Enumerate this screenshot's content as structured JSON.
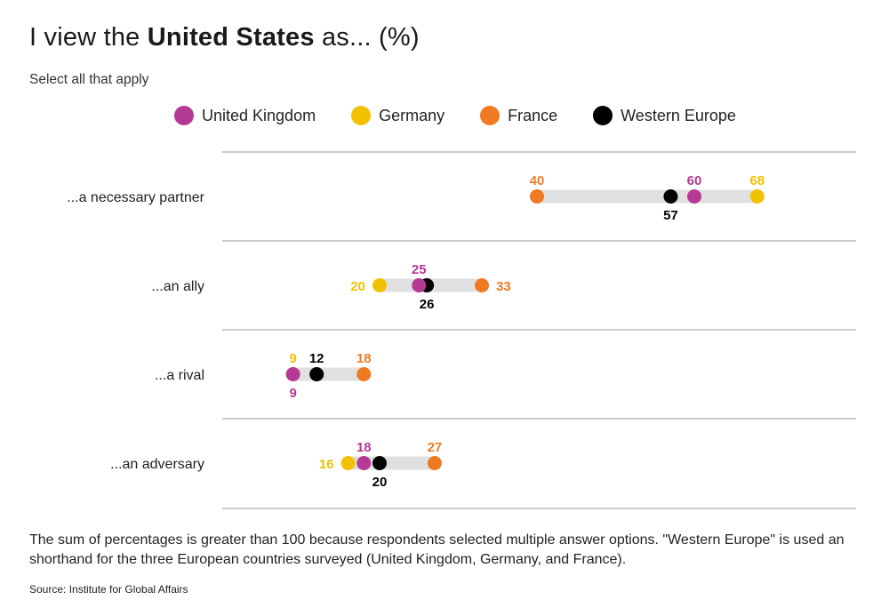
{
  "title": {
    "prefix": "I view the ",
    "bold": "United States",
    "suffix": " as... (%)"
  },
  "subtitle": "Select all that apply",
  "legend": [
    {
      "name": "United Kingdom",
      "color": "#b53a94"
    },
    {
      "name": "Germany",
      "color": "#f2c200"
    },
    {
      "name": "France",
      "color": "#f07a21"
    },
    {
      "name": "Western Europe",
      "color": "#000000"
    }
  ],
  "chart_data": {
    "type": "dot-range",
    "title": "I view the United States as... (%)",
    "subtitle": "Select all that apply",
    "xlim": [
      0,
      80
    ],
    "series": [
      {
        "name": "United Kingdom",
        "color": "#b53a94",
        "values": [
          60,
          25,
          9,
          18
        ]
      },
      {
        "name": "Germany",
        "color": "#f2c200",
        "values": [
          68,
          20,
          9,
          16
        ]
      },
      {
        "name": "France",
        "color": "#f07a21",
        "values": [
          40,
          33,
          18,
          27
        ]
      },
      {
        "name": "Western Europe",
        "color": "#000000",
        "values": [
          57,
          26,
          12,
          20
        ]
      }
    ],
    "categories": [
      "...a necessary partner",
      "...an ally",
      "...a rival",
      "...an adversary"
    ],
    "label_positions": [
      {
        "United Kingdom": "above",
        "Germany": "above",
        "France": "above",
        "Western Europe": "below"
      },
      {
        "United Kingdom": "above",
        "Germany": "left",
        "France": "right",
        "Western Europe": "below"
      },
      {
        "United Kingdom": "below",
        "Germany": "above",
        "France": "above",
        "Western Europe": "above"
      },
      {
        "United Kingdom": "above",
        "Germany": "left",
        "France": "above",
        "Western Europe": "below"
      }
    ]
  },
  "note": "The sum of percentages is greater than 100 because respondents selected multiple answer options. \"Western Europe\" is used an shorthand for the three European countries surveyed (United Kingdom, Germany, and France).",
  "source": "Source: Institute for Global Affairs"
}
